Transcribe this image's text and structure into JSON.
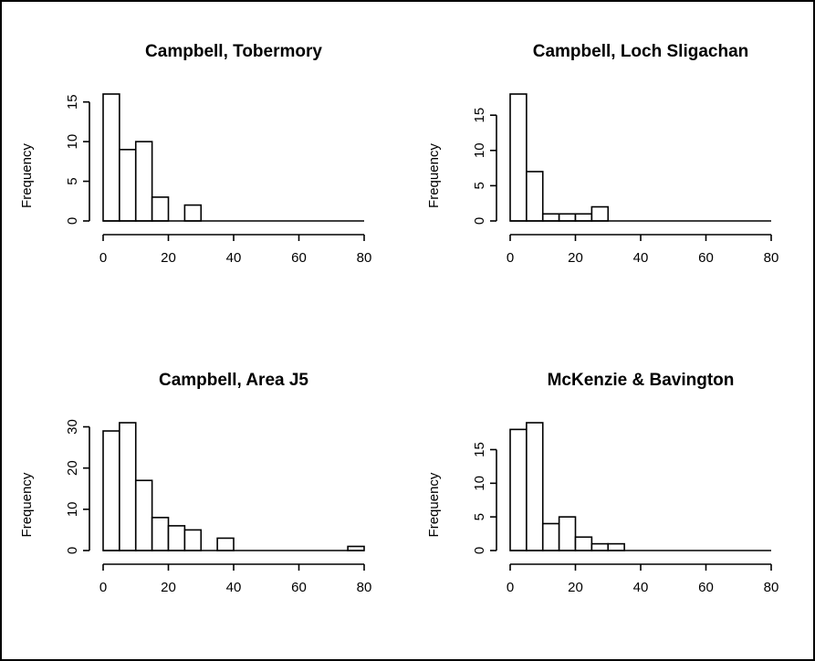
{
  "chart_data": [
    {
      "type": "bar",
      "title": "Campbell, Tobermory",
      "ylabel": "Frequency",
      "xlabel": "",
      "bin_width": 5,
      "bin_starts": [
        0,
        5,
        10,
        15,
        20,
        25
      ],
      "values": [
        16,
        9,
        10,
        3,
        0,
        2
      ],
      "xticks": [
        0,
        20,
        40,
        60,
        80
      ],
      "yticks": [
        0,
        5,
        10,
        15
      ],
      "xlim": [
        0,
        80
      ],
      "ylim": [
        0,
        16
      ]
    },
    {
      "type": "bar",
      "title": "Campbell, Loch Sligachan",
      "ylabel": "Frequency",
      "xlabel": "",
      "bin_width": 5,
      "bin_starts": [
        0,
        5,
        10,
        15,
        20,
        25
      ],
      "values": [
        18,
        7,
        1,
        1,
        1,
        2
      ],
      "xticks": [
        0,
        20,
        40,
        60,
        80
      ],
      "yticks": [
        0,
        5,
        10,
        15
      ],
      "xlim": [
        0,
        80
      ],
      "ylim": [
        0,
        18
      ]
    },
    {
      "type": "bar",
      "title": "Campbell, Area J5",
      "ylabel": "Frequency",
      "xlabel": "",
      "bin_width": 5,
      "bin_starts": [
        0,
        5,
        10,
        15,
        20,
        25,
        30,
        35,
        40,
        45,
        50,
        55,
        60,
        65,
        70,
        75
      ],
      "values": [
        29,
        31,
        17,
        8,
        6,
        5,
        0,
        3,
        0,
        0,
        0,
        0,
        0,
        0,
        0,
        1
      ],
      "xticks": [
        0,
        20,
        40,
        60,
        80
      ],
      "yticks": [
        0,
        10,
        20,
        30
      ],
      "xlim": [
        0,
        80
      ],
      "ylim": [
        0,
        31
      ]
    },
    {
      "type": "bar",
      "title": "McKenzie & Bavington",
      "ylabel": "Frequency",
      "xlabel": "",
      "bin_width": 5,
      "bin_starts": [
        0,
        5,
        10,
        15,
        20,
        25,
        30
      ],
      "values": [
        18,
        19,
        4,
        5,
        2,
        1,
        1
      ],
      "xticks": [
        0,
        20,
        40,
        60,
        80
      ],
      "yticks": [
        0,
        5,
        10,
        15
      ],
      "xlim": [
        0,
        80
      ],
      "ylim": [
        0,
        19
      ]
    }
  ]
}
